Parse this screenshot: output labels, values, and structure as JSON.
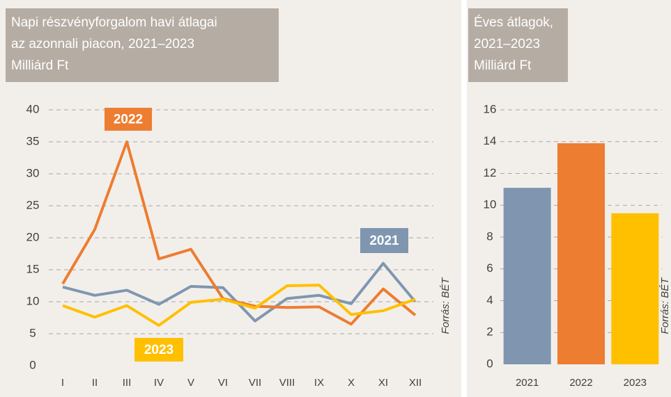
{
  "chart_data": [
    {
      "type": "line",
      "title_lines": [
        "Napi részvényforgalom havi átlagai",
        "az azonnali piacon, 2021–2023",
        "Milliárd Ft"
      ],
      "categories": [
        "I",
        "II",
        "III",
        "IV",
        "V",
        "VI",
        "VII",
        "VIII",
        "IX",
        "X",
        "XI",
        "XII"
      ],
      "series": [
        {
          "name": "2021",
          "color": "#8096b0",
          "values": [
            12.3,
            11.0,
            11.8,
            9.6,
            12.4,
            12.2,
            7.0,
            10.5,
            11.0,
            9.7,
            16.0,
            10.0
          ]
        },
        {
          "name": "2022",
          "color": "#ed7d31",
          "values": [
            12.8,
            21.3,
            35.0,
            16.7,
            18.2,
            10.5,
            9.3,
            9.1,
            9.2,
            6.5,
            12.0,
            7.9
          ]
        },
        {
          "name": "2023",
          "color": "#ffc000",
          "values": [
            9.4,
            7.6,
            9.4,
            6.3,
            9.9,
            10.4,
            9.0,
            12.5,
            12.6,
            8.0,
            8.6,
            10.4
          ]
        }
      ],
      "ylim": [
        0,
        40
      ],
      "yticks": [
        0,
        5,
        10,
        15,
        20,
        25,
        30,
        35,
        40
      ],
      "grid": true,
      "source": "Forrás: BÉT"
    },
    {
      "type": "bar",
      "title_lines": [
        "Éves átlagok,",
        "2021–2023",
        "Milliárd Ft"
      ],
      "categories": [
        "2021",
        "2022",
        "2023"
      ],
      "values": [
        11.1,
        13.9,
        9.5
      ],
      "colors": [
        "#8096b0",
        "#ed7d31",
        "#ffc000"
      ],
      "ylim": [
        0,
        16
      ],
      "yticks": [
        0,
        2,
        4,
        6,
        8,
        10,
        12,
        14,
        16
      ],
      "grid": true,
      "source": "Forrás: BÉT"
    }
  ]
}
